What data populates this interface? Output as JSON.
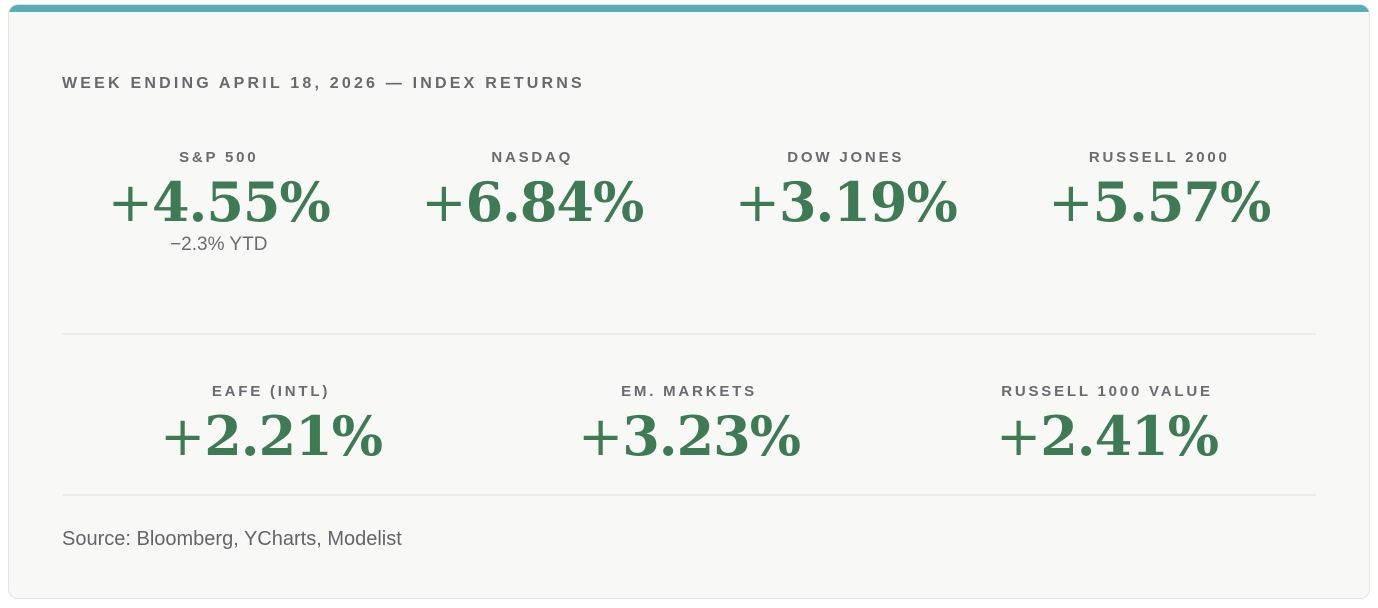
{
  "colors": {
    "accent_teal": "#58adbb",
    "value_green": "#3e7b54",
    "label_gray": "#6a6a6f",
    "card_background": "#f8f8f7"
  },
  "header": {
    "title": "WEEK ENDING APRIL 18, 2026 — INDEX RETURNS"
  },
  "rows": [
    {
      "items": [
        {
          "label": "S&P 500",
          "sign": "+",
          "value": "4.55%",
          "sub": "−2.3% YTD"
        },
        {
          "label": "NASDAQ",
          "sign": "+",
          "value": "6.84%"
        },
        {
          "label": "DOW JONES",
          "sign": "+",
          "value": "3.19%"
        },
        {
          "label": "RUSSELL 2000",
          "sign": "+",
          "value": "5.57%"
        }
      ]
    },
    {
      "items": [
        {
          "label": "EAFE (INTL)",
          "sign": "+",
          "value": "2.21%"
        },
        {
          "label": "EM. MARKETS",
          "sign": "+",
          "value": "3.23%"
        },
        {
          "label": "RUSSELL 1000 VALUE",
          "sign": "+",
          "value": "2.41%"
        }
      ]
    }
  ],
  "footer": {
    "source": "Source: Bloomberg, YCharts, Modelist"
  },
  "chart_data": {
    "type": "table",
    "title": "WEEK ENDING APRIL 18, 2026 — INDEX RETURNS",
    "series": [
      {
        "name": "S&P 500",
        "weekly_return_pct": 4.55,
        "ytd_return_pct": -2.3
      },
      {
        "name": "NASDAQ",
        "weekly_return_pct": 6.84
      },
      {
        "name": "DOW JONES",
        "weekly_return_pct": 3.19
      },
      {
        "name": "RUSSELL 2000",
        "weekly_return_pct": 5.57
      },
      {
        "name": "EAFE (INTL)",
        "weekly_return_pct": 2.21
      },
      {
        "name": "EM. MARKETS",
        "weekly_return_pct": 3.23
      },
      {
        "name": "RUSSELL 1000 VALUE",
        "weekly_return_pct": 2.41
      }
    ],
    "source": "Source: Bloomberg, YCharts, Modelist"
  }
}
